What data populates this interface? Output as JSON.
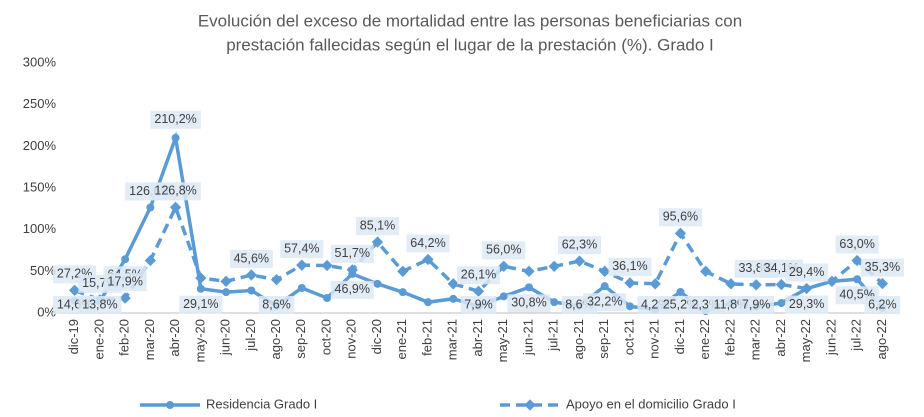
{
  "chart_data": {
    "type": "line",
    "title": [
      "Evolución del exceso de mortalidad entre las personas beneficiarias con",
      "prestación fallecidas según el lugar de la prestación (%). Grado I"
    ],
    "categories": [
      "dic-19",
      "ene-20",
      "feb-20",
      "mar-20",
      "abr-20",
      "may-20",
      "jun-20",
      "jul-20",
      "ago-20",
      "sep-20",
      "oct-20",
      "nov-20",
      "dic-20",
      "ene-21",
      "feb-21",
      "mar-21",
      "abr-21",
      "may-21",
      "jun-21",
      "jul-21",
      "ago-21",
      "sep-21",
      "oct-21",
      "nov-21",
      "dic-21",
      "ene-22",
      "feb-22",
      "mar-22",
      "abr-22",
      "may-22",
      "jun-22",
      "jul-22",
      "ago-22"
    ],
    "series": [
      {
        "name": "Residencia Grado I",
        "color": "#5b9bd5",
        "dash": false,
        "values": [
          14.6,
          13.8,
          64.5,
          126.6,
          210.2,
          29.1,
          25,
          27,
          8.6,
          30,
          18,
          46.9,
          35,
          25,
          13,
          17,
          7.9,
          20,
          30.8,
          13,
          8.6,
          32.2,
          8,
          4.2,
          25.2,
          2.3,
          11.8,
          7.9,
          12,
          29.3,
          38,
          40.5,
          6.2
        ],
        "value_labels": [
          "14,6%",
          "13,8%",
          "64,5%",
          "126,6%",
          "210,2%",
          "29,1%",
          null,
          null,
          "8,6%",
          null,
          null,
          "46,9%",
          null,
          null,
          null,
          null,
          "7,9%",
          null,
          "30,8%",
          null,
          "8,6%",
          "32,2%",
          null,
          "4,2%",
          "25,2%",
          "2,3%",
          "11,8%",
          "7,9%",
          null,
          "29,3%",
          null,
          "40,5%",
          "6,2%"
        ]
      },
      {
        "name": "Apoyo en el domicilio Grado I",
        "color": "#5b9bd5",
        "dash": true,
        "values": [
          27.2,
          15.7,
          17.9,
          63,
          126.8,
          42,
          38,
          45.6,
          40,
          57.4,
          57,
          51.7,
          85.1,
          50,
          64.2,
          35,
          26.1,
          56.0,
          50,
          56,
          62.3,
          50,
          36.1,
          35,
          95.6,
          50,
          35,
          33.8,
          34.1,
          29.4,
          38,
          63.0,
          35.3
        ],
        "value_labels": [
          "27,2%",
          "15,7%",
          "17,9%",
          null,
          "126,8%",
          null,
          null,
          "45,6%",
          null,
          "57,4%",
          null,
          "51,7%",
          "85,1%",
          null,
          "64,2%",
          null,
          "26,1%",
          "56,0%",
          null,
          null,
          "62,3%",
          null,
          "36,1%",
          null,
          "95,6%",
          null,
          null,
          "33,8%",
          "34,1%",
          "29,4%",
          null,
          "63,0%",
          "35,3%"
        ]
      }
    ],
    "ylim": [
      0,
      300
    ],
    "yticks": [
      {
        "value": 0,
        "label": "0%"
      },
      {
        "value": 50,
        "label": "50%"
      },
      {
        "value": 100,
        "label": "100%"
      },
      {
        "value": 150,
        "label": "150%"
      },
      {
        "value": 200,
        "label": "200%"
      },
      {
        "value": 250,
        "label": "250%"
      },
      {
        "value": 300,
        "label": "300%"
      }
    ],
    "grid": false,
    "legend": "bottom"
  }
}
